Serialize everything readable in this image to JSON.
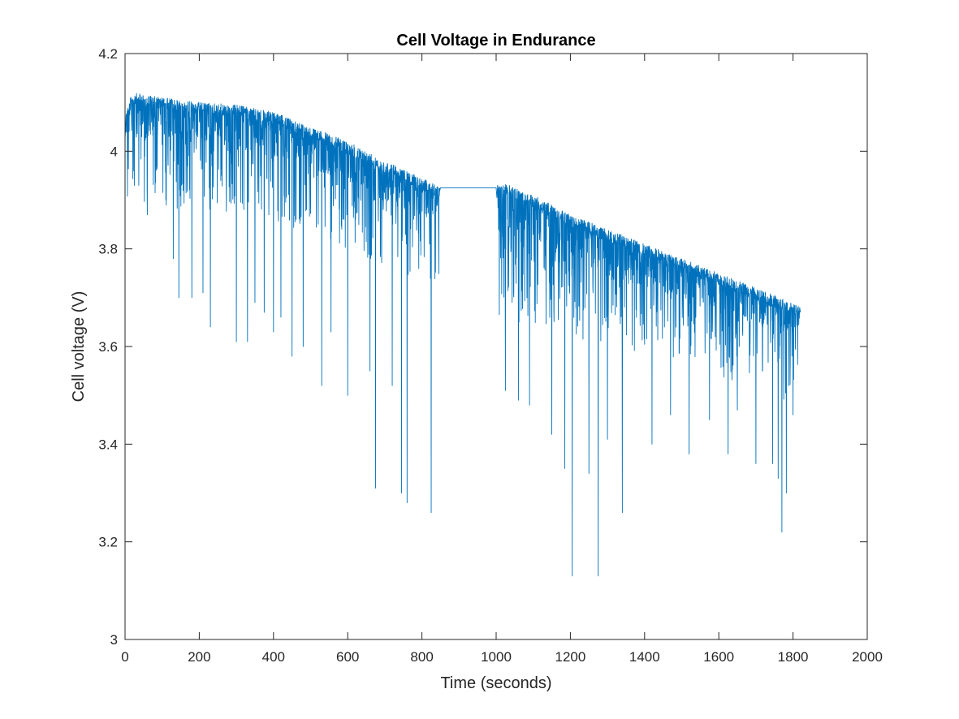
{
  "chart_data": {
    "type": "line",
    "title": "Cell Voltage in Endurance",
    "xlabel": "Time (seconds)",
    "ylabel": "Cell voltage (V)",
    "xlim": [
      0,
      2000
    ],
    "ylim": [
      3,
      4.2
    ],
    "xticks": [
      0,
      200,
      400,
      600,
      800,
      1000,
      1200,
      1400,
      1600,
      1800,
      2000
    ],
    "xtick_labels": [
      "0",
      "200",
      "400",
      "600",
      "800",
      "1000",
      "1200",
      "1400",
      "1600",
      "1800",
      "2000"
    ],
    "yticks": [
      3,
      3.2,
      3.4,
      3.6,
      3.8,
      4,
      4.2
    ],
    "ytick_labels": [
      "3",
      "3.2",
      "3.4",
      "3.6",
      "3.8",
      "4",
      "4.2"
    ],
    "grid": false,
    "box": true,
    "line_color": "#0072BD",
    "series": [
      {
        "upper_envelope": {
          "x": [
            0,
            20,
            100,
            200,
            300,
            400,
            500,
            600,
            700,
            800,
            845,
            850,
            1000,
            1010,
            1020,
            1100,
            1200,
            1300,
            1400,
            1500,
            1600,
            1700,
            1800,
            1820
          ],
          "y": [
            4.08,
            4.12,
            4.11,
            4.1,
            4.095,
            4.08,
            4.05,
            4.02,
            3.98,
            3.945,
            3.928,
            3.925,
            3.925,
            3.93,
            3.935,
            3.91,
            3.87,
            3.84,
            3.81,
            3.78,
            3.75,
            3.72,
            3.69,
            3.68
          ]
        },
        "baseline_envelope": {
          "x": [
            0,
            200,
            400,
            600,
            800,
            845,
            1010,
            1200,
            1400,
            1600,
            1800,
            1820
          ],
          "y": [
            4.03,
            4.02,
            3.99,
            3.94,
            3.86,
            3.87,
            3.8,
            3.76,
            3.72,
            3.68,
            3.62,
            3.63
          ]
        },
        "plateau": {
          "x": [
            850,
            1000
          ],
          "y": 3.925
        },
        "spikes": {
          "x": [
            25,
            60,
            110,
            130,
            145,
            180,
            210,
            230,
            300,
            330,
            350,
            375,
            400,
            420,
            450,
            480,
            530,
            555,
            600,
            660,
            675,
            720,
            745,
            760,
            825,
            1025,
            1060,
            1090,
            1150,
            1185,
            1205,
            1250,
            1275,
            1300,
            1340,
            1420,
            1470,
            1520,
            1575,
            1625,
            1650,
            1700,
            1745,
            1760,
            1770,
            1782,
            1800
          ],
          "y": [
            3.93,
            3.87,
            3.9,
            3.78,
            3.7,
            3.7,
            3.71,
            3.64,
            3.61,
            3.61,
            3.69,
            3.67,
            3.63,
            3.66,
            3.58,
            3.6,
            3.52,
            3.63,
            3.5,
            3.55,
            3.31,
            3.52,
            3.3,
            3.28,
            3.26,
            3.51,
            3.49,
            3.48,
            3.42,
            3.35,
            3.13,
            3.34,
            3.13,
            3.41,
            3.26,
            3.4,
            3.46,
            3.38,
            3.45,
            3.38,
            3.47,
            3.36,
            3.36,
            3.33,
            3.22,
            3.3,
            3.46
          ]
        }
      }
    ]
  }
}
